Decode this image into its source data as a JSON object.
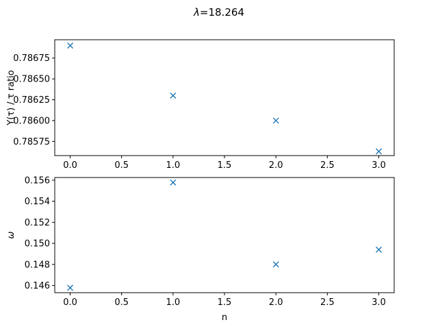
{
  "figure": {
    "suptitle_symbol": "λ",
    "suptitle_value": "=18.264",
    "marker_color": "#1f77b4",
    "marker": "x"
  },
  "chart_data": [
    {
      "type": "scatter",
      "title": "",
      "xlabel": "",
      "ylabel": "Y(τ) / τ ratio",
      "x": [
        0,
        1,
        2,
        3
      ],
      "series": [
        {
          "values": [
            0.7869,
            0.7863,
            0.786,
            0.78563
          ]
        }
      ],
      "xlim": [
        -0.15,
        3.15
      ],
      "ylim": [
        0.78558,
        0.78697
      ],
      "xticks": [
        0,
        0.5,
        1,
        1.5,
        2,
        2.5,
        3
      ],
      "xtick_labels": [
        "0.0",
        "0.5",
        "1.0",
        "1.5",
        "2.0",
        "2.5",
        "3.0"
      ],
      "yticks": [
        0.78575,
        0.786,
        0.78625,
        0.7865,
        0.78675
      ],
      "ytick_labels": [
        "0.78575",
        "0.78600",
        "0.78625",
        "0.78650",
        "0.78675"
      ],
      "grid": false
    },
    {
      "type": "scatter",
      "title": "",
      "xlabel": "n",
      "ylabel": "ω",
      "x": [
        0,
        1,
        2,
        3
      ],
      "series": [
        {
          "values": [
            0.14578,
            0.15578,
            0.148,
            0.1494
          ]
        }
      ],
      "xlim": [
        -0.15,
        3.15
      ],
      "ylim": [
        0.14532,
        0.15625
      ],
      "xticks": [
        0,
        0.5,
        1,
        1.5,
        2,
        2.5,
        3
      ],
      "xtick_labels": [
        "0.0",
        "0.5",
        "1.0",
        "1.5",
        "2.0",
        "2.5",
        "3.0"
      ],
      "yticks": [
        0.146,
        0.148,
        0.15,
        0.152,
        0.154,
        0.156
      ],
      "ytick_labels": [
        "0.146",
        "0.148",
        "0.150",
        "0.152",
        "0.154",
        "0.156"
      ],
      "grid": false
    }
  ]
}
